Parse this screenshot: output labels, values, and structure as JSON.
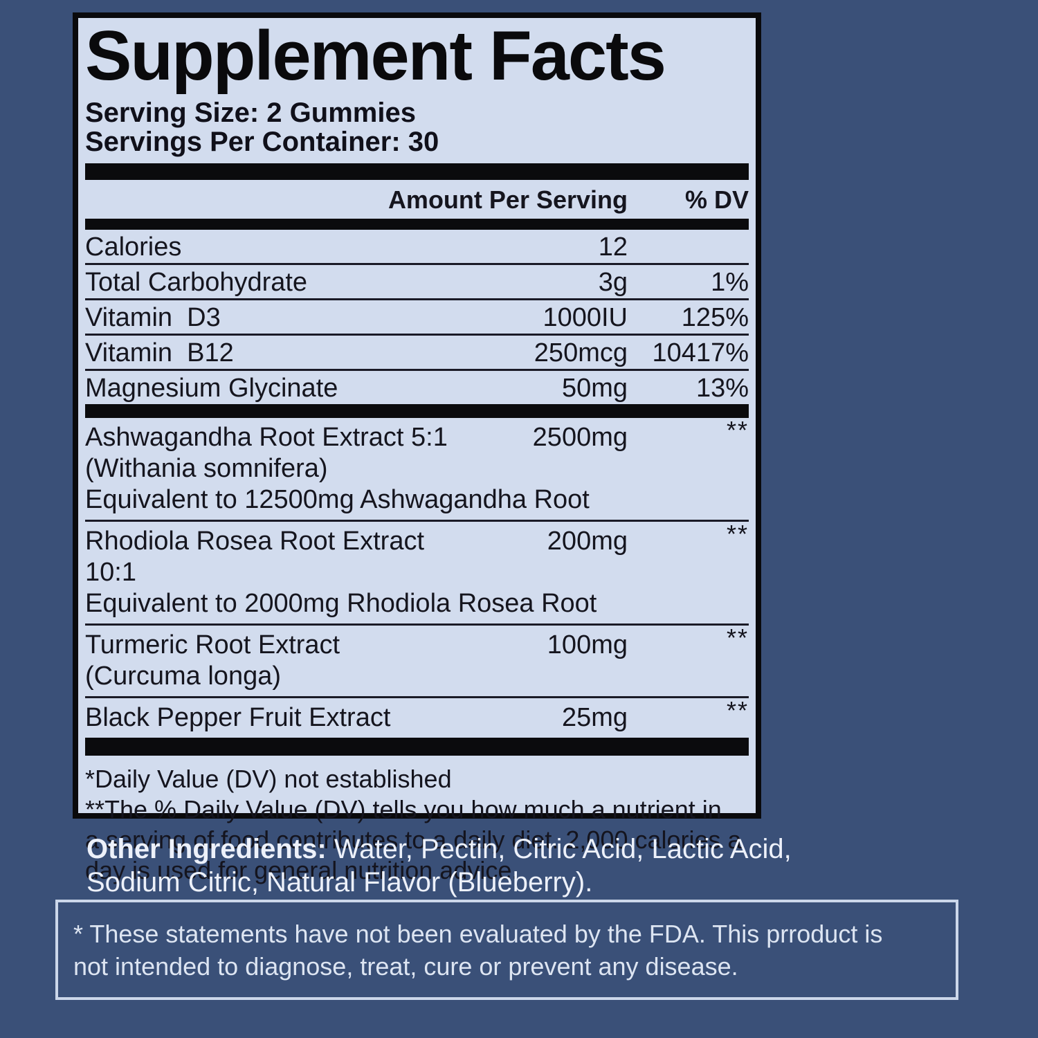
{
  "colors": {
    "background": "#3a5078",
    "label_background": "#d2dcee",
    "separator_bar": "#0b0b0d",
    "text_dark": "#15151e",
    "text_light": "#edf1fa",
    "disclaimer_border": "#ccd7ea"
  },
  "label": {
    "title": "Supplement Facts",
    "serving_size": "Serving Size: 2 Gummies",
    "servings_per_container": "Servings Per Container: 30",
    "columns": {
      "amount": "Amount Per Serving",
      "dv": "% DV"
    },
    "nutrient_rows": [
      {
        "name": "Calories",
        "amount": "12",
        "dv": ""
      },
      {
        "name": "Total Carbohydrate",
        "amount": "3g",
        "dv": "1%"
      },
      {
        "name": "Vitamin  D3",
        "amount": "1000IU",
        "dv": "125%"
      },
      {
        "name": "Vitamin  B12",
        "amount": "250mcg",
        "dv": "10417%"
      },
      {
        "name": "Magnesium Glycinate",
        "amount": "50mg",
        "dv": "13%"
      }
    ],
    "botanical_rows": [
      {
        "name": "Ashwagandha Root Extract 5:1",
        "amount": "2500mg",
        "dv": "**",
        "sub1": "(Withania somnifera)",
        "sub2": "Equivalent to 12500mg Ashwagandha Root"
      },
      {
        "name": "Rhodiola Rosea Root Extract 10:1",
        "amount": "200mg",
        "dv": "**",
        "sub1": "Equivalent to 2000mg Rhodiola Rosea Root"
      },
      {
        "name": "Turmeric Root Extract (Curcuma longa)",
        "amount": "100mg",
        "dv": "**"
      },
      {
        "name": "Black Pepper Fruit Extract",
        "amount": "25mg",
        "dv": "**"
      }
    ],
    "footnote_lines": [
      "*Daily Value (DV) not established",
      "**The % Daily Value (DV) tells you how much a nutrient in",
      "a serving of food contributes to a daily diet. 2,000 calories a",
      "day is used for general nutrition advice."
    ]
  },
  "other_ingredients": {
    "label": "Other Ingredients:",
    "line1_rest": " Water, Pectin, Citric Acid, Lactic Acid,",
    "line2": "Sodium Citric, Natural Flavor (Blueberry)."
  },
  "disclaimer": {
    "line1": "* These statements have not been evaluated by the FDA. This prroduct is",
    "line2": "not intended to diagnose, treat, cure or prevent any disease."
  }
}
